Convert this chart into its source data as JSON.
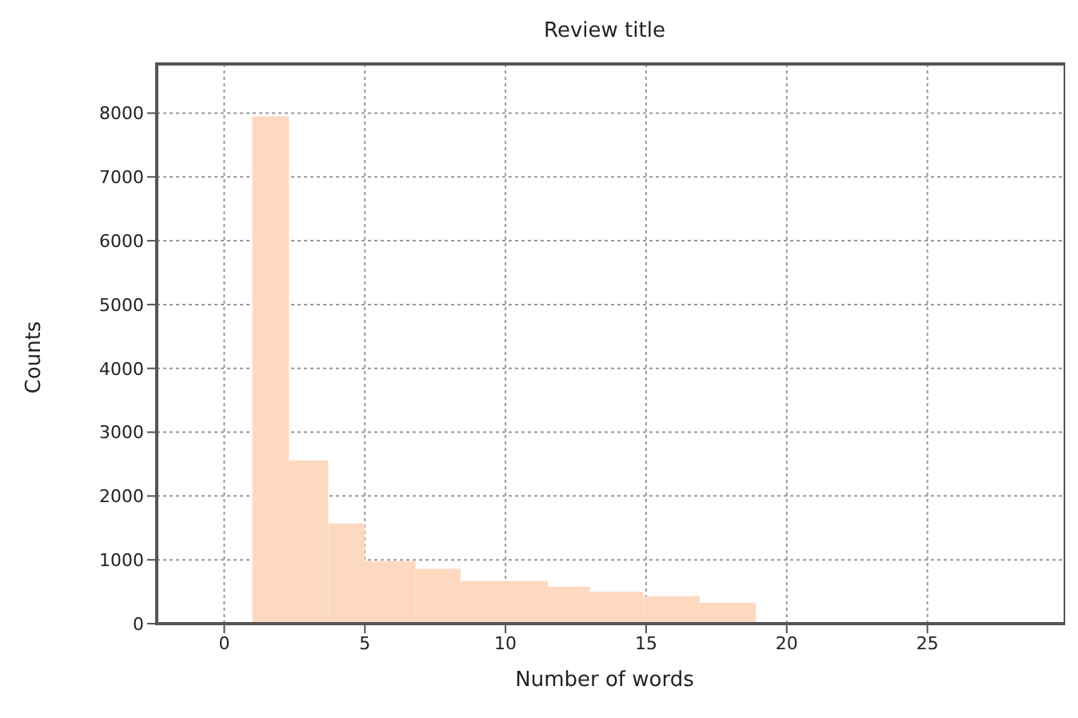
{
  "chart_data": {
    "type": "histogram",
    "title": "Review title",
    "xlabel": "Number of words",
    "ylabel": "Counts",
    "bins": [
      1,
      2.3,
      3.7,
      5,
      6.8,
      8.4,
      11.5,
      13,
      14.9,
      16.9,
      18.9
    ],
    "values": [
      7950,
      2560,
      1570,
      980,
      860,
      670,
      580,
      500,
      430,
      330
    ],
    "color": "#fdd9c0",
    "xlim": [
      -2.4,
      29.9
    ],
    "xticks": [
      0,
      5,
      10,
      15,
      20,
      25
    ],
    "ylim": [
      0,
      8770
    ],
    "yticks": [
      0,
      1000,
      2000,
      3000,
      4000,
      5000,
      6000,
      7000,
      8000
    ],
    "grid": true
  }
}
